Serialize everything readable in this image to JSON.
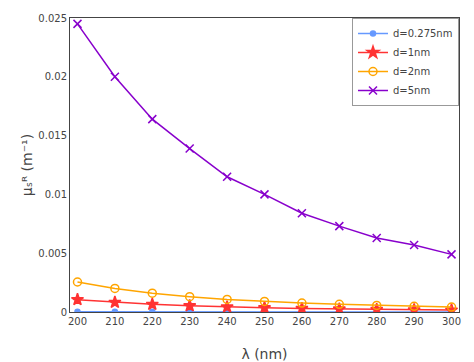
{
  "chart_data": {
    "type": "line",
    "x": [
      200,
      210,
      220,
      230,
      240,
      250,
      260,
      270,
      280,
      290,
      300
    ],
    "series": [
      {
        "name": "d=0.275nm",
        "color": "#6699FF",
        "marker": "point",
        "values": [
          2.8e-05,
          2.2e-05,
          1.7e-05,
          1.4e-05,
          1.1e-05,
          9e-06,
          8e-06,
          7e-06,
          6e-06,
          5e-06,
          4e-06
        ]
      },
      {
        "name": "d=1nm",
        "color": "#FF3333",
        "marker": "star",
        "values": [
          0.00105,
          0.00082,
          0.00065,
          0.00053,
          0.00043,
          0.00036,
          0.0003,
          0.00025,
          0.00021,
          0.00018,
          0.00016
        ]
      },
      {
        "name": "d=2nm",
        "color": "#FFA500",
        "marker": "circle-open",
        "values": [
          0.00255,
          0.002,
          0.0016,
          0.0013,
          0.00107,
          0.0009,
          0.00076,
          0.00065,
          0.00056,
          0.00048,
          0.00042
        ]
      },
      {
        "name": "d=5nm",
        "color": "#8800CC",
        "marker": "x",
        "values": [
          0.0245,
          0.02,
          0.0164,
          0.0139,
          0.0115,
          0.01,
          0.0084,
          0.0073,
          0.0063,
          0.0057,
          0.0049
        ]
      }
    ],
    "xlabel": "λ (nm)",
    "ylabel": "μₛᴿ (m⁻¹)",
    "xlim": [
      198,
      302
    ],
    "ylim": [
      0,
      0.025
    ],
    "xticks": [
      200,
      210,
      220,
      230,
      240,
      250,
      260,
      270,
      280,
      290,
      300
    ],
    "yticks": [
      0,
      0.005,
      0.01,
      0.015,
      0.02,
      0.025
    ],
    "grid": false,
    "legend": "upper right"
  }
}
